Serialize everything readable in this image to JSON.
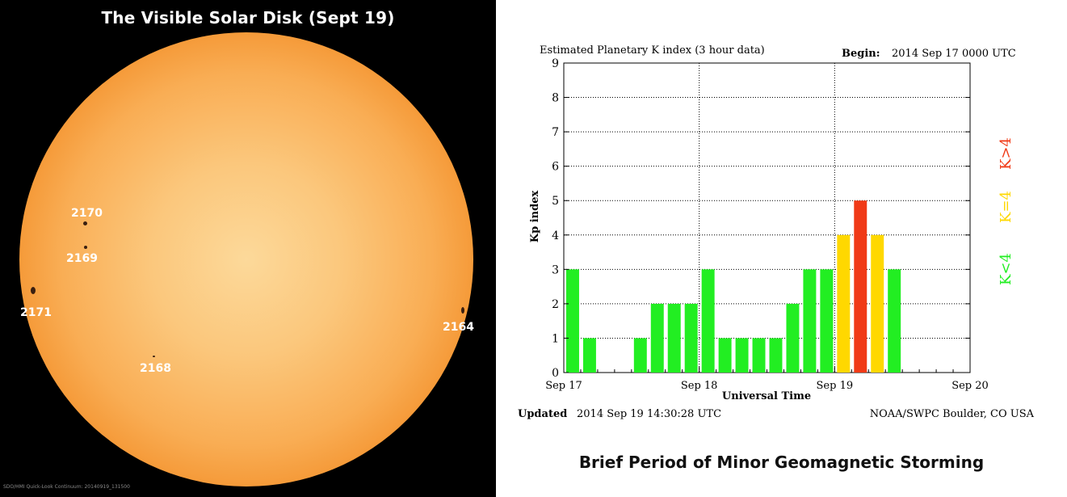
{
  "sun": {
    "title": "The Visible Solar Disk (Sept 19)",
    "caption": "SDO/HMI Quick-Look Continuum: 20140919_131500",
    "regions": [
      {
        "label": "2170"
      },
      {
        "label": "2169"
      },
      {
        "label": "2171"
      },
      {
        "label": "2164"
      },
      {
        "label": "2168"
      }
    ]
  },
  "chart_data": {
    "type": "bar",
    "title": "Estimated Planetary K index (3 hour data)",
    "begin_label": "Begin:",
    "begin_value": "2014 Sep 17 0000 UTC",
    "xlabel": "Universal Time",
    "ylabel": "Kp index",
    "ylim": [
      0,
      9
    ],
    "yticks": [
      "0",
      "1",
      "2",
      "3",
      "4",
      "5",
      "6",
      "7",
      "8",
      "9"
    ],
    "xticks": [
      "Sep 17",
      "Sep 18",
      "Sep 19",
      "Sep 20"
    ],
    "slots": 24,
    "values": [
      3,
      1,
      null,
      null,
      1,
      2,
      2,
      2,
      3,
      1,
      1,
      1,
      1,
      2,
      3,
      3,
      4,
      5,
      4,
      3,
      null,
      null,
      null,
      null
    ],
    "grid": true,
    "legend": [
      {
        "label": "K>4",
        "color": "#f03a17"
      },
      {
        "label": "K=4",
        "color": "#ffd800"
      },
      {
        "label": "K<4",
        "color": "#22ee22"
      }
    ],
    "colors": {
      "low": "#22ee22",
      "equal": "#ffd800",
      "high": "#f03a17"
    },
    "updated_label": "Updated",
    "updated_value": "2014 Sep 19 14:30:28 UTC",
    "source": "NOAA/SWPC Boulder, CO USA"
  },
  "footer": {
    "title": "Brief Period of Minor Geomagnetic Storming"
  }
}
